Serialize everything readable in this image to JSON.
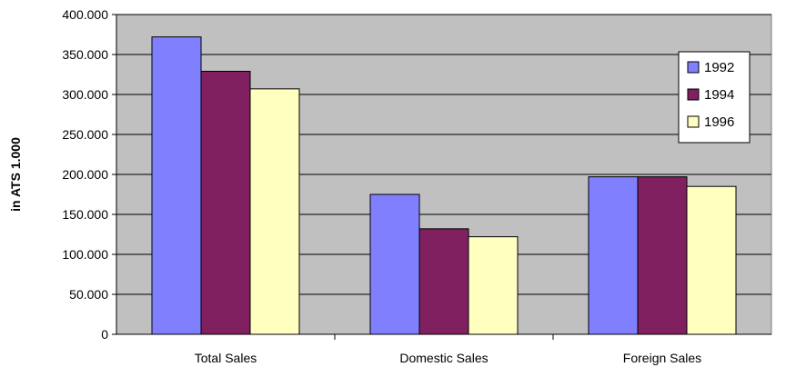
{
  "chart_data": {
    "type": "bar",
    "categories": [
      "Total Sales",
      "Domestic Sales",
      "Foreign Sales"
    ],
    "series": [
      {
        "name": "1992",
        "values": [
          372000,
          175000,
          197000
        ],
        "color": "#8080ff"
      },
      {
        "name": "1994",
        "values": [
          329000,
          132000,
          197000
        ],
        "color": "#802060"
      },
      {
        "name": "1996",
        "values": [
          307000,
          122000,
          185000
        ],
        "color": "#ffffc0"
      }
    ],
    "ylabel": "in ATS 1.000",
    "ylim": [
      0,
      400000
    ],
    "yticks": [
      "0",
      "50.000",
      "100.000",
      "150.000",
      "200.000",
      "250.000",
      "300.000",
      "350.000",
      "400.000"
    ],
    "grid": true,
    "legend_position": "right",
    "plot_background": "#c0c0c0"
  }
}
